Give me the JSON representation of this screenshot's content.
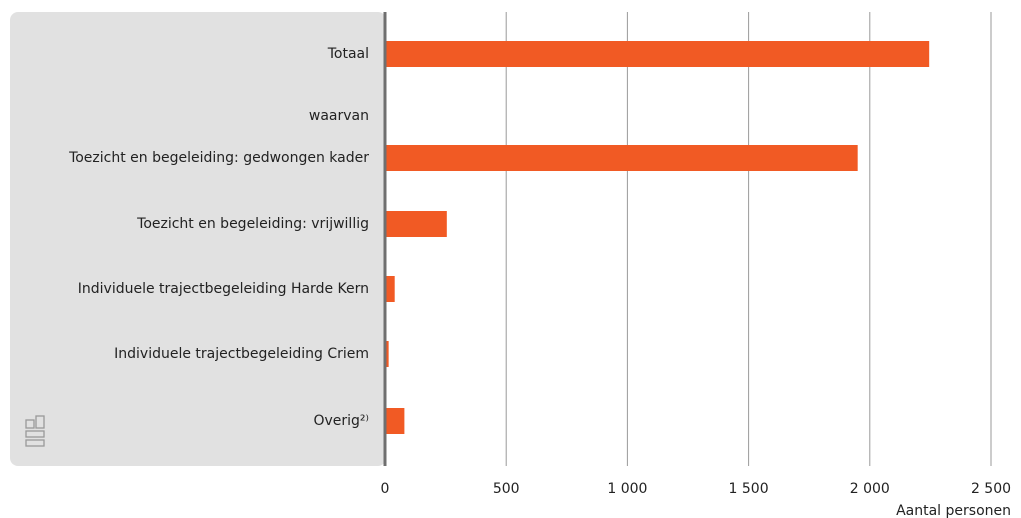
{
  "chart_data": {
    "type": "bar",
    "orientation": "horizontal",
    "categories": [
      "Totaal",
      "waarvan",
      "Toezicht en begeleiding: gedwongen kader",
      "Toezicht en begeleiding: vrijwillig",
      "Individuele trajectbegeleiding Harde Kern",
      "Individuele trajectbegeleiding Criem",
      "Overig²⁾"
    ],
    "values": [
      2245,
      null,
      1950,
      255,
      40,
      15,
      80
    ],
    "color": "#f15a24",
    "xlim": [
      0,
      2500
    ],
    "xticks": [
      0,
      500,
      {
        "value": 1000,
        "label": "1 000"
      },
      {
        "value": 1500,
        "label": "1 500"
      },
      {
        "value": 2000,
        "label": "2 000"
      },
      {
        "value": 2500,
        "label": "2 500"
      }
    ],
    "xlabel": "Aantal personen",
    "grid": true
  }
}
